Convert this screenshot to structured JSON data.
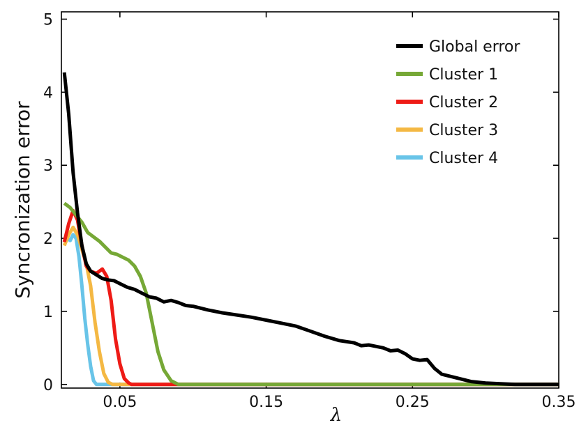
{
  "chart_data": {
    "type": "line",
    "xlabel": "λ",
    "ylabel": "Syncronization error",
    "xlim": [
      0.01,
      0.35
    ],
    "ylim": [
      -0.05,
      5.1
    ],
    "xticks": [
      0.05,
      0.15,
      0.25,
      0.35
    ],
    "xtick_labels": [
      "0.05",
      "0.15",
      "0.25",
      "0.35"
    ],
    "yticks": [
      0,
      1,
      2,
      3,
      4,
      5
    ],
    "ytick_labels": [
      "0",
      "1",
      "2",
      "3",
      "4",
      "5"
    ],
    "grid": false,
    "legend_position": "top-right",
    "series": [
      {
        "name": "Global error",
        "color": "#000000",
        "x": [
          0.012,
          0.015,
          0.018,
          0.021,
          0.024,
          0.027,
          0.03,
          0.034,
          0.038,
          0.042,
          0.046,
          0.05,
          0.055,
          0.06,
          0.065,
          0.07,
          0.075,
          0.08,
          0.085,
          0.09,
          0.095,
          0.1,
          0.11,
          0.12,
          0.13,
          0.14,
          0.15,
          0.16,
          0.17,
          0.18,
          0.19,
          0.2,
          0.21,
          0.215,
          0.22,
          0.23,
          0.235,
          0.24,
          0.245,
          0.25,
          0.255,
          0.26,
          0.265,
          0.27,
          0.28,
          0.29,
          0.3,
          0.31,
          0.32,
          0.33,
          0.34,
          0.35
        ],
        "y": [
          4.27,
          3.7,
          2.9,
          2.35,
          1.9,
          1.65,
          1.55,
          1.5,
          1.45,
          1.43,
          1.42,
          1.38,
          1.33,
          1.3,
          1.25,
          1.2,
          1.18,
          1.13,
          1.15,
          1.12,
          1.08,
          1.07,
          1.02,
          0.98,
          0.95,
          0.92,
          0.88,
          0.84,
          0.8,
          0.73,
          0.66,
          0.6,
          0.57,
          0.53,
          0.54,
          0.5,
          0.46,
          0.47,
          0.42,
          0.35,
          0.33,
          0.34,
          0.22,
          0.14,
          0.09,
          0.04,
          0.02,
          0.01,
          0.0,
          0.0,
          0.0,
          0.0
        ]
      },
      {
        "name": "Cluster 1",
        "color": "#76a836",
        "x": [
          0.012,
          0.016,
          0.02,
          0.024,
          0.028,
          0.032,
          0.036,
          0.04,
          0.044,
          0.048,
          0.052,
          0.056,
          0.06,
          0.064,
          0.068,
          0.072,
          0.076,
          0.08,
          0.085,
          0.09,
          0.1,
          0.35
        ],
        "y": [
          2.48,
          2.42,
          2.32,
          2.22,
          2.08,
          2.02,
          1.96,
          1.88,
          1.8,
          1.78,
          1.74,
          1.7,
          1.62,
          1.48,
          1.25,
          0.85,
          0.45,
          0.2,
          0.05,
          0.0,
          0.0,
          0.0
        ]
      },
      {
        "name": "Cluster 2",
        "color": "#ee1b16",
        "x": [
          0.012,
          0.015,
          0.018,
          0.021,
          0.024,
          0.027,
          0.03,
          0.034,
          0.038,
          0.041,
          0.044,
          0.047,
          0.05,
          0.053,
          0.056,
          0.058,
          0.062,
          0.35
        ],
        "y": [
          1.95,
          2.2,
          2.38,
          2.25,
          1.9,
          1.62,
          1.55,
          1.52,
          1.58,
          1.48,
          1.15,
          0.62,
          0.28,
          0.08,
          0.02,
          0.0,
          0.0,
          0.0
        ]
      },
      {
        "name": "Cluster 3",
        "color": "#f4b843",
        "x": [
          0.012,
          0.015,
          0.018,
          0.021,
          0.024,
          0.027,
          0.03,
          0.033,
          0.036,
          0.039,
          0.042,
          0.045,
          0.048,
          0.35
        ],
        "y": [
          1.9,
          2.05,
          2.15,
          2.05,
          1.85,
          1.65,
          1.35,
          0.85,
          0.45,
          0.15,
          0.03,
          0.0,
          0.0,
          0.0
        ]
      },
      {
        "name": "Cluster 4",
        "color": "#68c4e8",
        "x": [
          0.012,
          0.014,
          0.016,
          0.018,
          0.02,
          0.022,
          0.024,
          0.026,
          0.028,
          0.03,
          0.032,
          0.034,
          0.036,
          0.038,
          0.35
        ],
        "y": [
          1.98,
          2.0,
          1.97,
          2.05,
          2.0,
          1.75,
          1.35,
          0.9,
          0.55,
          0.25,
          0.05,
          0.0,
          0.0,
          0.0,
          0.0
        ]
      }
    ]
  }
}
